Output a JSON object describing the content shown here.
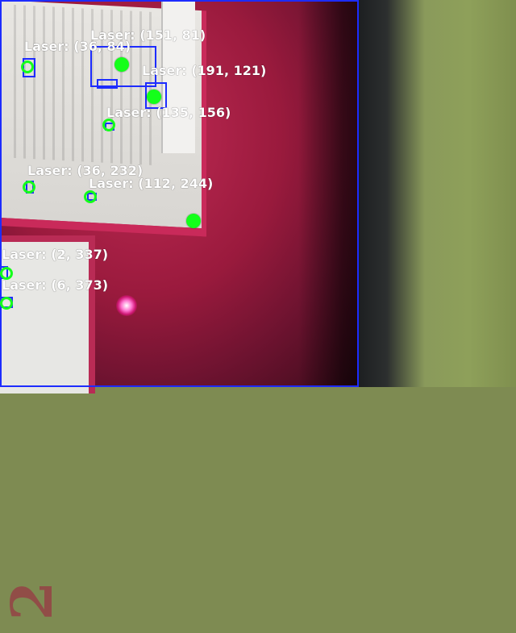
{
  "overlays": {
    "label_top_center": "Laser: (151, 81)",
    "label_top_left": "Laser: (36, 84)",
    "label_mid_center_a": "Laser: (191, 121)",
    "label_mid_center_b": "Laser: (135, 156)",
    "label_mid_left": "Laser: (36, 232)",
    "label_mid_center_c": "Laser: (112, 244)",
    "label_bottom_left_a": "Laser: (2, 337)",
    "label_bottom_left_b": "Laser: (6, 373)"
  },
  "scene": {
    "big_number": "2"
  },
  "colors": {
    "overlay_blue": "#1d2cff",
    "laser_green": "#14ff1a",
    "text_white": "#ffffff",
    "magenta": "#ff3cb6"
  }
}
